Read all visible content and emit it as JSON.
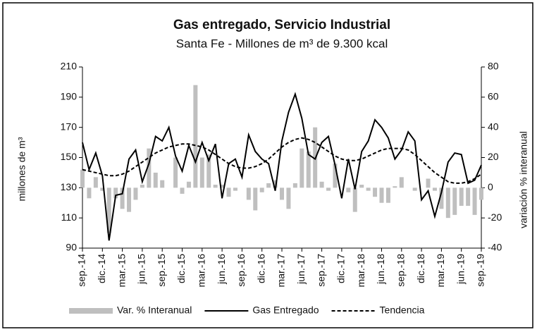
{
  "chart_data": {
    "type": "combo",
    "title": "Gas entregado, Servicio Industrial",
    "subtitle": "Santa Fe - Millones de m³ de 9.300 kcal",
    "ylabel": "millones de m³",
    "y2label": "variación % interanual",
    "categories": [
      "sep.-14",
      null,
      null,
      "dic.-14",
      null,
      null,
      "mar.-15",
      null,
      null,
      "jun.-15",
      null,
      null,
      "sep.-15",
      null,
      null,
      "dic.-15",
      null,
      null,
      "mar.-16",
      null,
      null,
      "jun.-16",
      null,
      null,
      "sep.-16",
      null,
      null,
      "dic.-16",
      null,
      null,
      "mar.-17",
      null,
      null,
      "jun.-17",
      null,
      null,
      "sep.-17",
      null,
      null,
      "dic.-17",
      null,
      null,
      "mar.-18",
      null,
      null,
      "jun.-18",
      null,
      null,
      "sep.-18",
      null,
      null,
      "dic.-18",
      null,
      null,
      "mar.-19",
      null,
      null,
      "jun.-19",
      null,
      null,
      "sep.-19"
    ],
    "series": [
      {
        "name": "Var. % Interanual",
        "type": "bar",
        "axis": "y2",
        "color": "#bfbfbf",
        "values": [
          12,
          -7,
          7,
          -2,
          -30,
          -7,
          -14,
          -16,
          -8,
          2,
          26,
          10,
          5,
          0,
          20,
          -4,
          4,
          68,
          20,
          22,
          2,
          2,
          -6,
          -2,
          0,
          -8,
          -15,
          -3,
          3,
          5,
          -8,
          -14,
          3,
          26,
          24,
          40,
          4,
          -2,
          16,
          0,
          -3,
          -16,
          2,
          -2,
          -6,
          -10,
          -10,
          1,
          7,
          0,
          -2,
          0,
          6,
          -2,
          -14,
          -20,
          -18,
          -12,
          -12,
          -18,
          -8
        ]
      },
      {
        "name": "Gas Entregado",
        "type": "line",
        "color": "#000000",
        "dash": false,
        "values": [
          160,
          142,
          153,
          138,
          95,
          125,
          126,
          149,
          155,
          134,
          146,
          164,
          161,
          170,
          151,
          141,
          158,
          147,
          160,
          148,
          159,
          123,
          146,
          149,
          137,
          165,
          154,
          149,
          146,
          128,
          161,
          180,
          192,
          176,
          152,
          149,
          160,
          164,
          145,
          123,
          149,
          129,
          154,
          161,
          175,
          170,
          163,
          149,
          155,
          167,
          161,
          122,
          128,
          111,
          127,
          147,
          153,
          152,
          133,
          135,
          145
        ]
      },
      {
        "name": "Tendencia",
        "type": "line",
        "color": "#000000",
        "dash": true,
        "values": [
          142,
          141,
          140,
          139,
          138,
          138,
          139,
          141,
          144,
          147,
          150,
          153,
          155,
          157,
          158,
          159,
          159,
          158,
          157,
          155,
          152,
          149,
          146,
          144,
          143,
          143,
          144,
          146,
          149,
          153,
          157,
          160,
          162,
          163,
          162,
          160,
          157,
          154,
          151,
          149,
          148,
          148,
          149,
          151,
          153,
          155,
          156,
          156,
          156,
          155,
          152,
          148,
          144,
          140,
          137,
          134,
          133,
          133,
          134,
          136,
          139
        ]
      }
    ],
    "ylim": [
      90,
      210
    ],
    "yticks": [
      90,
      110,
      130,
      150,
      170,
      190,
      210
    ],
    "y2lim": [
      -40,
      80
    ],
    "y2ticks": [
      -40,
      -20,
      0,
      20,
      40,
      60,
      80
    ]
  }
}
